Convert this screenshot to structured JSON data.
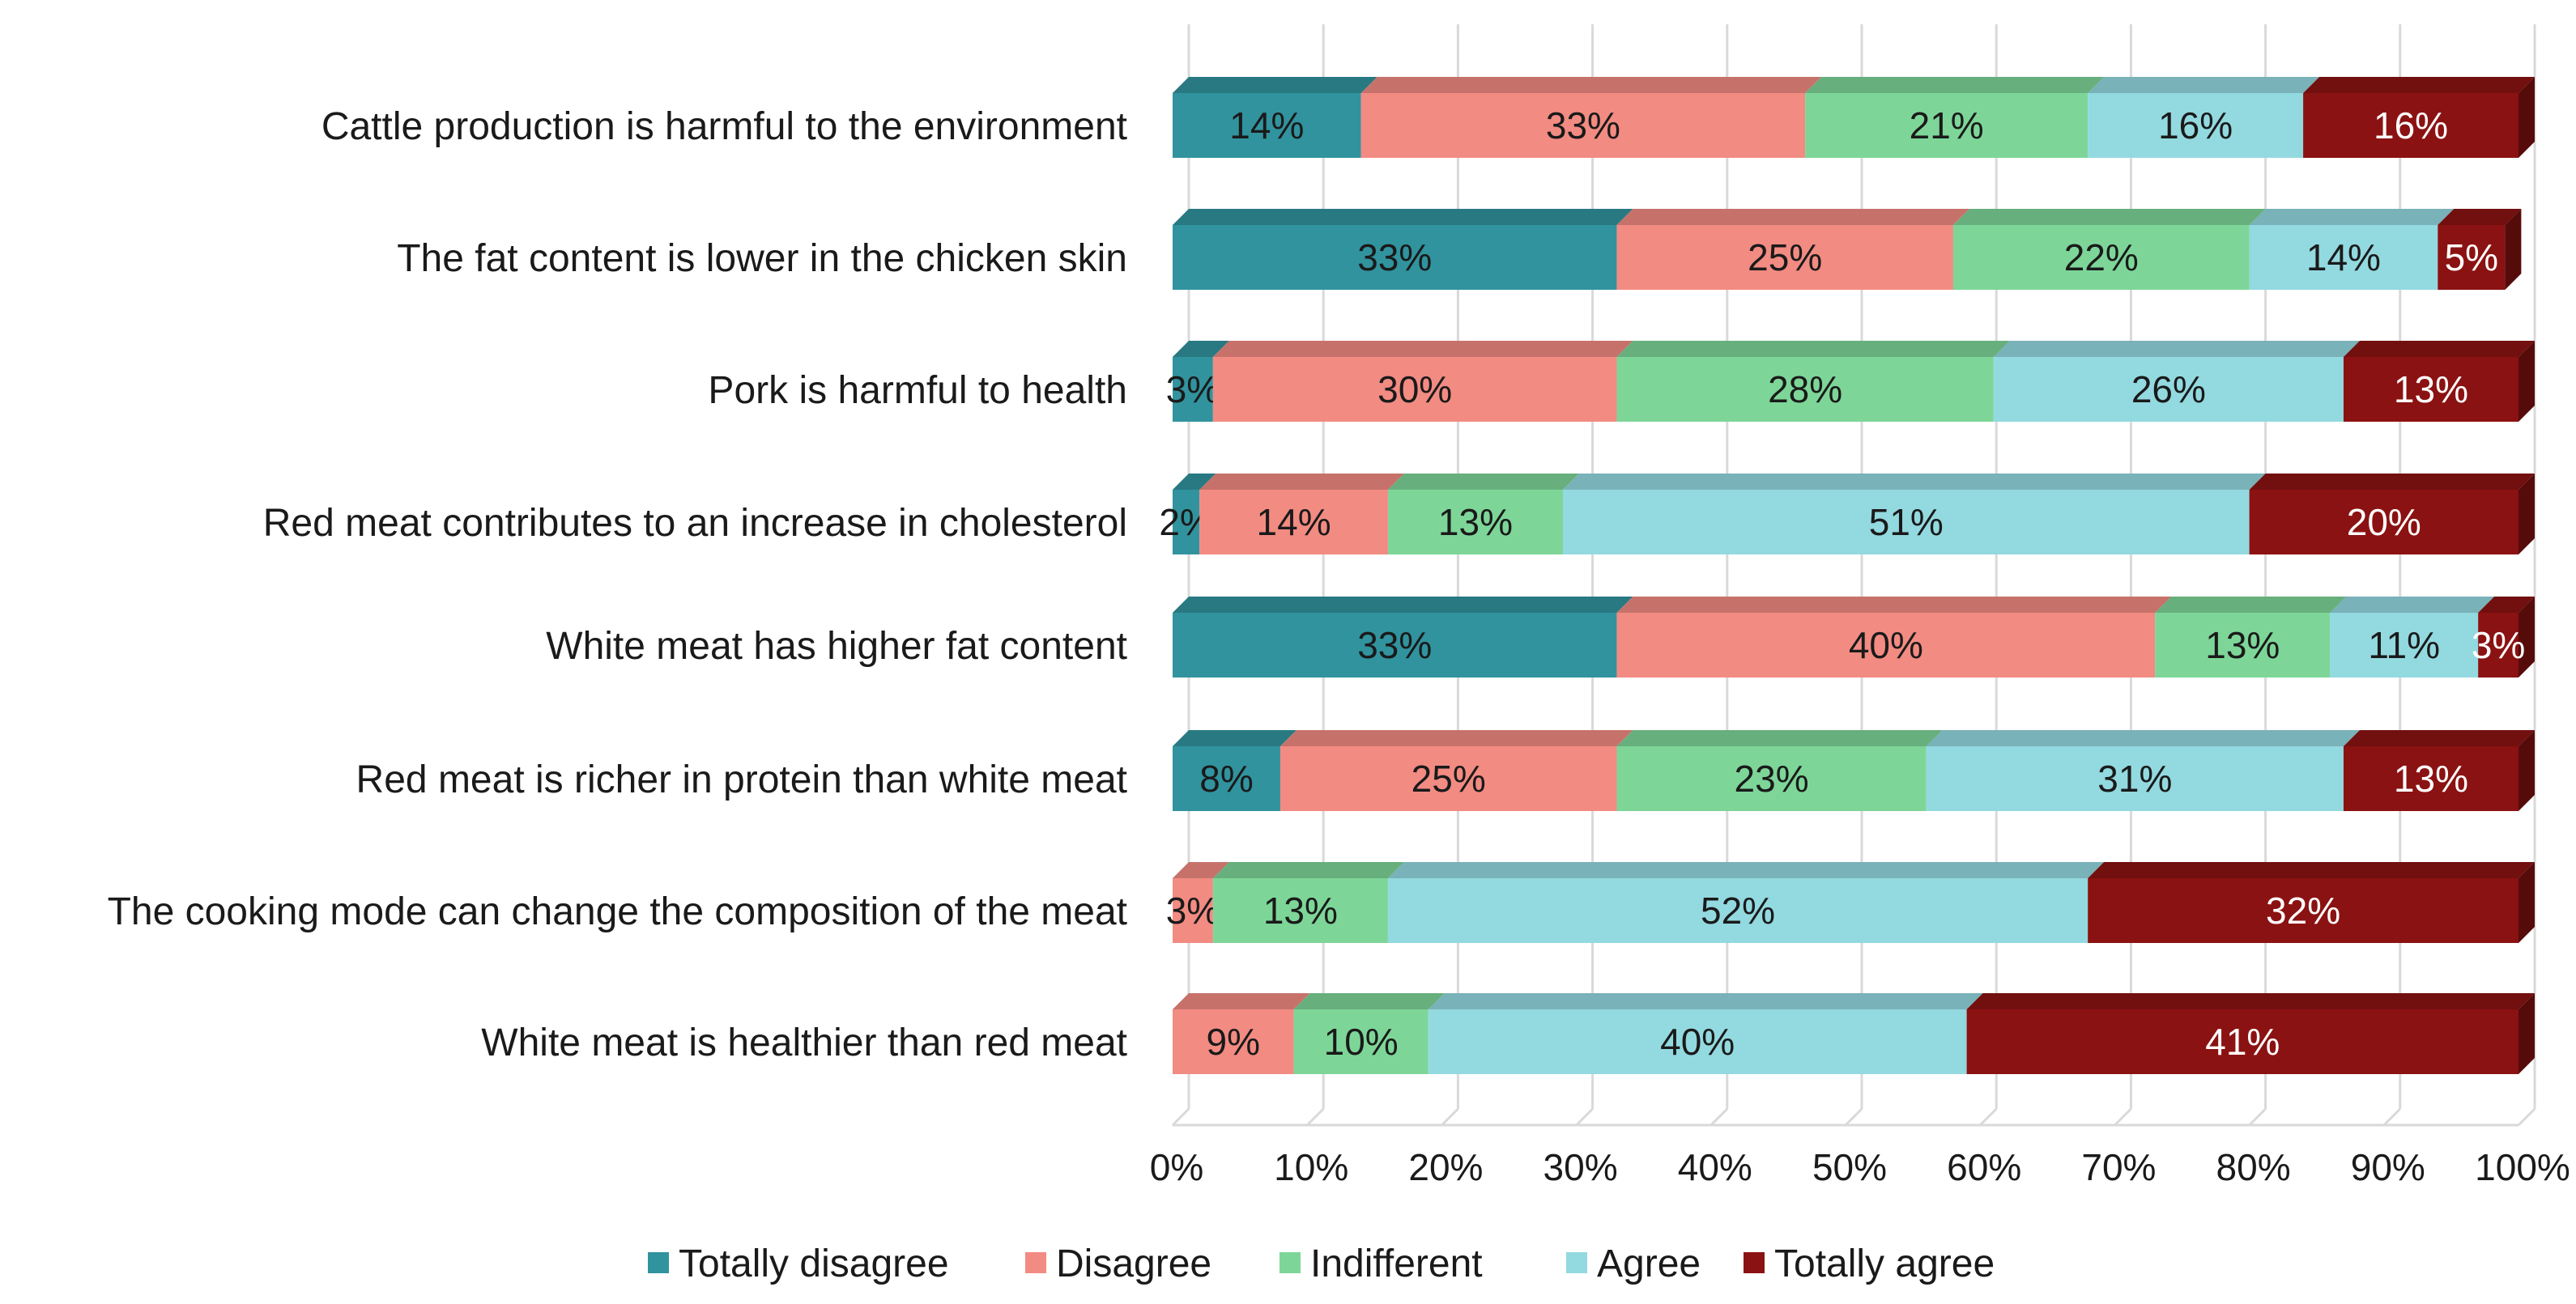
{
  "chart_data": {
    "type": "bar",
    "orientation": "horizontal",
    "stacked": true,
    "percent_stacked": true,
    "title": "",
    "xlabel": "",
    "ylabel": "",
    "xlim": [
      0,
      100
    ],
    "grid": true,
    "legend_position": "bottom",
    "categories": [
      "Cattle production is harmful to the environment",
      "The fat content is lower in the chicken skin",
      "Pork is harmful to health",
      "Red meat contributes to an increase in cholesterol",
      "White meat has higher fat content",
      "Red meat is richer in protein than white meat",
      "The cooking mode can change the composition of the meat",
      "White meat is healthier than red meat"
    ],
    "x_ticks": [
      "0%",
      "10%",
      "20%",
      "30%",
      "40%",
      "50%",
      "60%",
      "70%",
      "80%",
      "90%",
      "100%"
    ],
    "series": [
      {
        "name": "Totally disagree",
        "color": "#31939E",
        "label_color": "#1a1a1a",
        "values": [
          14,
          33,
          3,
          2,
          33,
          8,
          0,
          0
        ]
      },
      {
        "name": "Disagree",
        "color": "#F28B82",
        "label_color": "#1a1a1a",
        "values": [
          33,
          25,
          30,
          14,
          40,
          25,
          3,
          9
        ]
      },
      {
        "name": "Indifferent",
        "color": "#7DD698",
        "label_color": "#1a1a1a",
        "values": [
          21,
          22,
          28,
          13,
          13,
          23,
          13,
          10
        ]
      },
      {
        "name": "Agree",
        "color": "#93D9E0",
        "label_color": "#1a1a1a",
        "values": [
          16,
          14,
          26,
          51,
          11,
          31,
          52,
          40
        ]
      },
      {
        "name": "Totally agree",
        "color": "#8B1212",
        "label_color": "#ffffff",
        "values": [
          16,
          5,
          13,
          20,
          3,
          13,
          32,
          41
        ]
      }
    ]
  }
}
